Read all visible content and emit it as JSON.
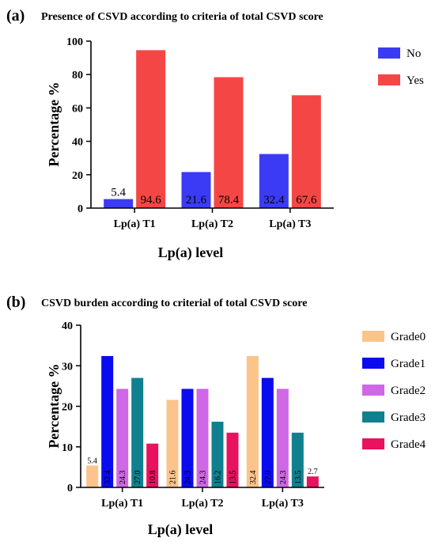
{
  "chart_data": [
    {
      "type": "bar",
      "panel": "(a)",
      "title": "Presence of CSVD according to criteria of total CSVD score",
      "xlabel": "Lp(a) level",
      "ylabel": "Percentage %",
      "ylim": [
        0,
        100
      ],
      "yticks": [
        0,
        20,
        40,
        60,
        80,
        100
      ],
      "categories": [
        "Lp(a) T1",
        "Lp(a) T2",
        "Lp(a) T3"
      ],
      "series": [
        {
          "name": "No",
          "color": "#3b3bf5",
          "values": [
            5.4,
            21.6,
            32.4
          ],
          "labels": [
            "5.4",
            "21.6",
            "32.4"
          ]
        },
        {
          "name": "Yes",
          "color": "#f54646",
          "values": [
            94.6,
            78.4,
            67.6
          ],
          "labels": [
            "94.6",
            "78.4",
            "67.6"
          ]
        }
      ],
      "legend": "right",
      "grid": false
    },
    {
      "type": "bar",
      "panel": "(b)",
      "title": "CSVD burden according to criterial of total CSVD score",
      "xlabel": "Lp(a) level",
      "ylabel": "Percentage %",
      "ylim": [
        0,
        40
      ],
      "yticks": [
        0,
        10,
        20,
        30,
        40
      ],
      "categories": [
        "Lp(a) T1",
        "Lp(a) T2",
        "Lp(a) T3"
      ],
      "series": [
        {
          "name": "Grade0",
          "color": "#fcc48a",
          "values": [
            5.4,
            21.6,
            32.4
          ],
          "labels": [
            "5.4",
            "21.6",
            "32.4"
          ]
        },
        {
          "name": "Grade1",
          "color": "#0b0bf0",
          "values": [
            32.4,
            24.3,
            27.0
          ],
          "labels": [
            "32.4",
            "24.3",
            "27.0"
          ]
        },
        {
          "name": "Grade2",
          "color": "#cf67e6",
          "values": [
            24.3,
            24.3,
            24.3
          ],
          "labels": [
            "24.3",
            "24.3",
            "24.3"
          ]
        },
        {
          "name": "Grade3",
          "color": "#10808f",
          "values": [
            27.0,
            16.2,
            13.5
          ],
          "labels": [
            "27.0",
            "16.2",
            "13.5"
          ]
        },
        {
          "name": "Grade4",
          "color": "#e8125e",
          "values": [
            10.8,
            13.5,
            2.7
          ],
          "labels": [
            "10.8",
            "13.5",
            "2.7"
          ]
        }
      ],
      "legend": "right",
      "grid": false
    }
  ]
}
